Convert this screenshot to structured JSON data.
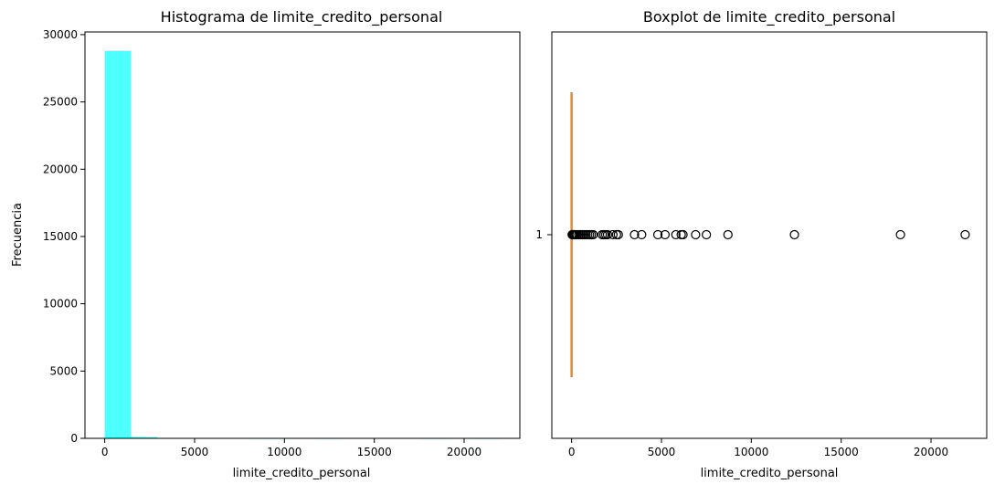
{
  "chart_data": [
    {
      "type": "bar",
      "title": "Histograma de limite_credito_personal",
      "xlabel": "limite_credito_personal",
      "ylabel": "Frecuencia",
      "xlim": [
        -1100,
        23100
      ],
      "ylim": [
        0,
        30200
      ],
      "x_ticks": [
        0,
        5000,
        10000,
        15000,
        20000
      ],
      "y_ticks": [
        0,
        5000,
        10000,
        15000,
        20000,
        25000,
        30000
      ],
      "bin_width": 1466.7,
      "bins": [
        {
          "x": 0,
          "count": 28800
        },
        {
          "x": 1466.7,
          "count": 100
        },
        {
          "x": 2933.3,
          "count": 20
        },
        {
          "x": 4400,
          "count": 12
        },
        {
          "x": 5866.7,
          "count": 8
        },
        {
          "x": 7333.3,
          "count": 4
        },
        {
          "x": 8800,
          "count": 1
        },
        {
          "x": 10266.7,
          "count": 0
        },
        {
          "x": 11733.3,
          "count": 1
        },
        {
          "x": 13200,
          "count": 0
        },
        {
          "x": 14666.7,
          "count": 0
        },
        {
          "x": 16133.3,
          "count": 0
        },
        {
          "x": 17600,
          "count": 1
        },
        {
          "x": 19066.7,
          "count": 0
        },
        {
          "x": 20533.3,
          "count": 1
        }
      ],
      "bar_color": "#4dffff",
      "grid": false
    },
    {
      "type": "boxplot",
      "title": "Boxplot de limite_credito_personal",
      "xlabel": "limite_credito_personal",
      "xlim": [
        -1100,
        23100
      ],
      "x_ticks": [
        0,
        5000,
        10000,
        15000,
        20000
      ],
      "y_ticks": [
        1
      ],
      "category": "1",
      "median": 0,
      "q1": 0,
      "q3": 0,
      "whisker_low": 0,
      "whisker_high": 0,
      "outliers": [
        30,
        60,
        100,
        150,
        200,
        250,
        300,
        400,
        500,
        600,
        700,
        800,
        900,
        1000,
        1100,
        1200,
        1700,
        1800,
        1900,
        2000,
        2300,
        2500,
        2600,
        3500,
        3900,
        4800,
        5200,
        5800,
        6100,
        6200,
        6900,
        7500,
        8700,
        12400,
        18300,
        21900
      ],
      "median_color": "#e8892b",
      "grid": false
    }
  ]
}
